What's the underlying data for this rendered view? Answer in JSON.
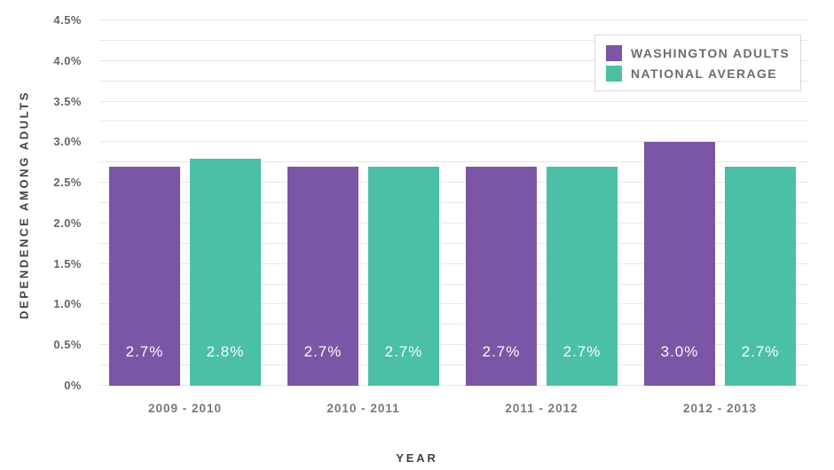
{
  "chart_data": {
    "type": "bar",
    "title": "",
    "categories": [
      "2009 - 2010",
      "2010 - 2011",
      "2011 - 2012",
      "2012 - 2013"
    ],
    "series": [
      {
        "name": "WASHINGTON ADULTS",
        "color": "#7B55A6",
        "values": [
          2.7,
          2.7,
          2.7,
          3.0
        ],
        "labels": [
          "2.7%",
          "2.7%",
          "2.7%",
          "3.0%"
        ]
      },
      {
        "name": "NATIONAL AVERAGE",
        "color": "#4BC0A6",
        "values": [
          2.8,
          2.7,
          2.7,
          2.7
        ],
        "labels": [
          "2.8%",
          "2.7%",
          "2.7%",
          "2.7%"
        ]
      }
    ],
    "xlabel": "YEAR",
    "ylabel": "DEPENDENCE AMONG ADULTS",
    "ylim": [
      0,
      4.5
    ],
    "ytick_step": 0.5,
    "minor_grid_step": 0.25,
    "yticks": [
      "0%",
      "0.5%",
      "1.0%",
      "1.5%",
      "2.0%",
      "2.5%",
      "3.0%",
      "3.5%",
      "4.0%",
      "4.5%"
    ],
    "grid": true,
    "legend_position": "top-right"
  }
}
